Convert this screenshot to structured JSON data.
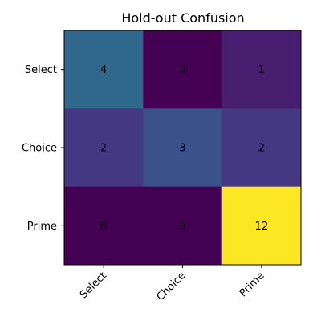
{
  "chart_data": {
    "type": "heatmap",
    "title": "Hold-out Confusion",
    "xlabel": "",
    "ylabel": "",
    "x_categories": [
      "Select",
      "Choice",
      "Prime"
    ],
    "y_categories": [
      "Select",
      "Choice",
      "Prime"
    ],
    "values": [
      [
        4,
        0,
        1
      ],
      [
        2,
        3,
        2
      ],
      [
        0,
        0,
        12
      ]
    ],
    "value_range": [
      0,
      12
    ],
    "colormap": "viridis",
    "grid": false,
    "legend": "none"
  }
}
